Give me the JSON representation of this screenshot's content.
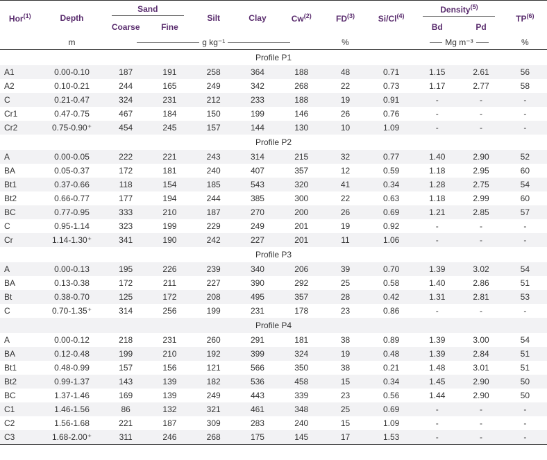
{
  "header": {
    "hor": "Hor",
    "hor_sup": "(1)",
    "depth": "Depth",
    "sand": "Sand",
    "coarse": "Coarse",
    "fine": "Fine",
    "silt": "Silt",
    "clay": "Clay",
    "cw": "Cw",
    "cw_sup": "(2)",
    "fd": "FD",
    "fd_sup": "(3)",
    "sicl": "Si/Cl",
    "sicl_sup": "(4)",
    "density": "Density",
    "density_sup": "(5)",
    "bd": "Bd",
    "pd": "Pd",
    "tp": "TP",
    "tp_sup": "(6)",
    "unit_m": "m",
    "unit_gkg": "g kg⁻¹",
    "unit_pct": "%",
    "unit_mgm": "Mg m⁻³",
    "unit_pct2": "%"
  },
  "sections": [
    {
      "title": "Profile P1",
      "rows": [
        [
          "A1",
          "0.00-0.10",
          "187",
          "191",
          "258",
          "364",
          "188",
          "48",
          "0.71",
          "1.15",
          "2.61",
          "56"
        ],
        [
          "A2",
          "0.10-0.21",
          "244",
          "165",
          "249",
          "342",
          "268",
          "22",
          "0.73",
          "1.17",
          "2.77",
          "58"
        ],
        [
          "C",
          "0.21-0.47",
          "324",
          "231",
          "212",
          "233",
          "188",
          "19",
          "0.91",
          "-",
          "-",
          "-"
        ],
        [
          "Cr1",
          "0.47-0.75",
          "467",
          "184",
          "150",
          "199",
          "146",
          "26",
          "0.76",
          "-",
          "-",
          "-"
        ],
        [
          "Cr2",
          "0.75-0.90⁺",
          "454",
          "245",
          "157",
          "144",
          "130",
          "10",
          "1.09",
          "-",
          "-",
          "-"
        ]
      ]
    },
    {
      "title": "Profile P2",
      "rows": [
        [
          "A",
          "0.00-0.05",
          "222",
          "221",
          "243",
          "314",
          "215",
          "32",
          "0.77",
          "1.40",
          "2.90",
          "52"
        ],
        [
          "BA",
          "0.05-0.37",
          "172",
          "181",
          "240",
          "407",
          "357",
          "12",
          "0.59",
          "1.18",
          "2.95",
          "60"
        ],
        [
          "Bt1",
          "0.37-0.66",
          "118",
          "154",
          "185",
          "543",
          "320",
          "41",
          "0.34",
          "1.28",
          "2.75",
          "54"
        ],
        [
          "Bt2",
          "0.66-0.77",
          "177",
          "194",
          "244",
          "385",
          "300",
          "22",
          "0.63",
          "1.18",
          "2.99",
          "60"
        ],
        [
          "BC",
          "0.77-0.95",
          "333",
          "210",
          "187",
          "270",
          "200",
          "26",
          "0.69",
          "1.21",
          "2.85",
          "57"
        ],
        [
          "C",
          "0.95-1.14",
          "323",
          "199",
          "229",
          "249",
          "201",
          "19",
          "0.92",
          "-",
          "-",
          "-"
        ],
        [
          "Cr",
          "1.14-1.30⁺",
          "341",
          "190",
          "242",
          "227",
          "201",
          "11",
          "1.06",
          "-",
          "-",
          "-"
        ]
      ]
    },
    {
      "title": "Profile P3",
      "rows": [
        [
          "A",
          "0.00-0.13",
          "195",
          "226",
          "239",
          "340",
          "206",
          "39",
          "0.70",
          "1.39",
          "3.02",
          "54"
        ],
        [
          "BA",
          "0.13-0.38",
          "172",
          "211",
          "227",
          "390",
          "292",
          "25",
          "0.58",
          "1.40",
          "2.86",
          "51"
        ],
        [
          "Bt",
          "0.38-0.70",
          "125",
          "172",
          "208",
          "495",
          "357",
          "28",
          "0.42",
          "1.31",
          "2.81",
          "53"
        ],
        [
          "C",
          "0.70-1.35⁺",
          "314",
          "256",
          "199",
          "231",
          "178",
          "23",
          "0.86",
          "-",
          "-",
          "-"
        ]
      ]
    },
    {
      "title": "Profile P4",
      "rows": [
        [
          "A",
          "0.00-0.12",
          "218",
          "231",
          "260",
          "291",
          "181",
          "38",
          "0.89",
          "1.39",
          "3.00",
          "54"
        ],
        [
          "BA",
          "0.12-0.48",
          "199",
          "210",
          "192",
          "399",
          "324",
          "19",
          "0.48",
          "1.39",
          "2.84",
          "51"
        ],
        [
          "Bt1",
          "0.48-0.99",
          "157",
          "156",
          "121",
          "566",
          "350",
          "38",
          "0.21",
          "1.48",
          "3.01",
          "51"
        ],
        [
          "Bt2",
          "0.99-1.37",
          "143",
          "139",
          "182",
          "536",
          "458",
          "15",
          "0.34",
          "1.45",
          "2.90",
          "50"
        ],
        [
          "BC",
          "1.37-1.46",
          "169",
          "139",
          "249",
          "443",
          "339",
          "23",
          "0.56",
          "1.44",
          "2.90",
          "50"
        ],
        [
          "C1",
          "1.46-1.56",
          "86",
          "132",
          "321",
          "461",
          "348",
          "25",
          "0.69",
          "-",
          "-",
          "-"
        ],
        [
          "C2",
          "1.56-1.68",
          "221",
          "187",
          "309",
          "283",
          "240",
          "15",
          "1.09",
          "-",
          "-",
          "-"
        ],
        [
          "C3",
          "1.68-2.00⁺",
          "311",
          "246",
          "268",
          "175",
          "145",
          "17",
          "1.53",
          "-",
          "-",
          "-"
        ]
      ]
    }
  ]
}
